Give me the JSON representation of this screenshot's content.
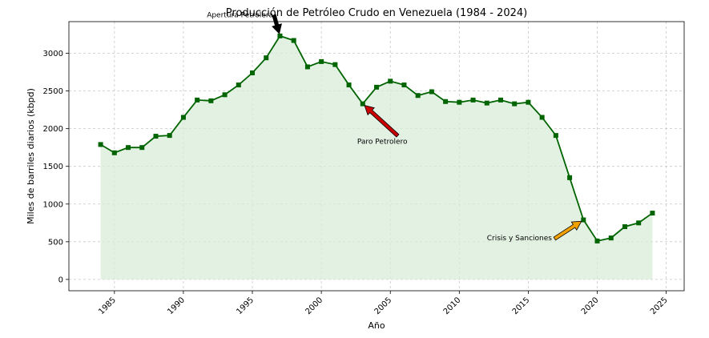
{
  "chart_data": {
    "type": "area",
    "title": "Producción de Petróleo Crudo en Venezuela (1984 - 2024)",
    "xlabel": "Año",
    "ylabel": "Miles de barriles diarios (kbpd)",
    "xlim": [
      1981.7,
      2026.3
    ],
    "ylim": [
      -150,
      3420
    ],
    "xticks": [
      1985,
      1990,
      1995,
      2000,
      2005,
      2010,
      2015,
      2020,
      2025
    ],
    "yticks": [
      0,
      500,
      1000,
      1500,
      2000,
      2500,
      3000
    ],
    "grid": true,
    "x": [
      1984,
      1985,
      1986,
      1987,
      1988,
      1989,
      1990,
      1991,
      1992,
      1993,
      1994,
      1995,
      1996,
      1997,
      1998,
      1999,
      2000,
      2001,
      2002,
      2003,
      2004,
      2005,
      2006,
      2007,
      2008,
      2009,
      2010,
      2011,
      2012,
      2013,
      2014,
      2015,
      2016,
      2017,
      2018,
      2019,
      2020,
      2021,
      2022,
      2023,
      2024
    ],
    "series": [
      {
        "values": [
          1790,
          1680,
          1750,
          1750,
          1900,
          1910,
          2150,
          2380,
          2370,
          2450,
          2580,
          2740,
          2940,
          3230,
          3170,
          2820,
          2890,
          2850,
          2580,
          2330,
          2550,
          2630,
          2580,
          2440,
          2490,
          2360,
          2350,
          2380,
          2340,
          2380,
          2330,
          2350,
          2150,
          1910,
          1350,
          790,
          510,
          550,
          700,
          750,
          880
        ],
        "line_color": "#006400",
        "fill_color": "#d9ecd9"
      }
    ],
    "annotations": [
      {
        "text": "Apertura Petrolera",
        "point": [
          1997,
          3230
        ],
        "text_pos": [
          1991.7,
          3480
        ],
        "arrow_color": "#000000"
      },
      {
        "text": "Paro Petrolero",
        "point": [
          2003,
          2330
        ],
        "text_pos": [
          2002.6,
          1800
        ],
        "arrow_color": "#cc0000"
      },
      {
        "text": "Crisis y Sanciones",
        "point": [
          2019,
          790
        ],
        "text_pos": [
          2012,
          520
        ],
        "arrow_color": "#f0a000"
      }
    ]
  }
}
